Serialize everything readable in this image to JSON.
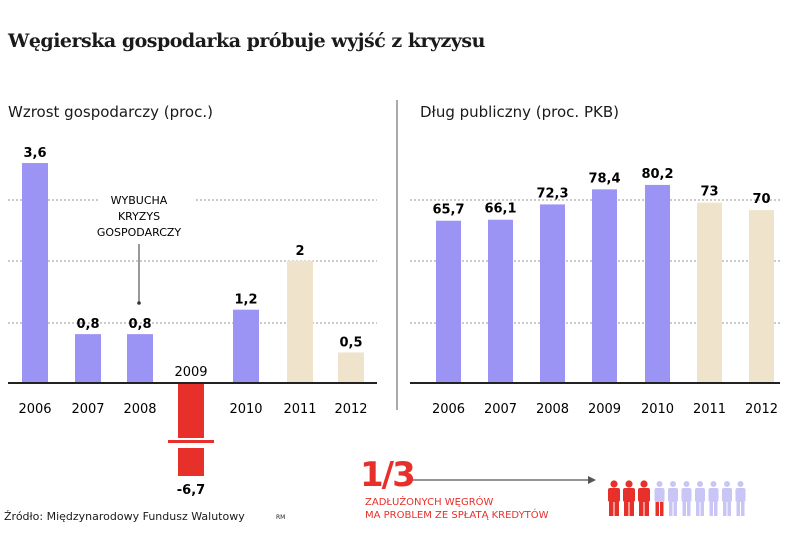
{
  "title": "Węgierska gospodarka próbuje wyjść z kryzysu",
  "chart_data": [
    {
      "type": "bar",
      "title": "Wzrost gospodarczy (proc.)",
      "categories": [
        "2006",
        "2007",
        "2008",
        "2009",
        "2010",
        "2011",
        "2012"
      ],
      "values": [
        3.6,
        0.8,
        0.8,
        -6.7,
        1.2,
        2,
        0.5
      ],
      "value_labels": [
        "3,6",
        "0,8",
        "0,8",
        "-6,7",
        "1,2",
        "2",
        "0,5"
      ],
      "forecast": [
        false,
        false,
        false,
        false,
        false,
        true,
        true
      ],
      "axis_break": "2009 bar truncated",
      "annotation": {
        "lines": [
          "WYBUCHA",
          "KRYZYS",
          "GOSPODARCZY"
        ],
        "points_to": "2008"
      },
      "grid": true
    },
    {
      "type": "bar",
      "title": "Dług publiczny (proc. PKB)",
      "categories": [
        "2006",
        "2007",
        "2008",
        "2009",
        "2010",
        "2011",
        "2012"
      ],
      "values": [
        65.7,
        66.1,
        72.3,
        78.4,
        80.2,
        73,
        70
      ],
      "value_labels": [
        "65,7",
        "66,1",
        "72,3",
        "78,4",
        "80,2",
        "73",
        "70"
      ],
      "forecast": [
        false,
        false,
        false,
        false,
        false,
        true,
        true
      ],
      "grid": true
    }
  ],
  "colors": {
    "actual": "#9c94f4",
    "forecast": "#efe3cc",
    "negative": "#e8302a",
    "person_light": "#c9c6f6"
  },
  "infobox": {
    "fraction": "1/3",
    "lines": [
      "ZADŁUŻONYCH WĘGRÓW",
      "MA PROBLEM ZE SPŁATĄ KREDYTÓW"
    ],
    "share": 0.3333,
    "icon": "person-icon"
  },
  "source": "Źródło: Międzynarodowy Fundusz Walutowy",
  "credit": "RM"
}
